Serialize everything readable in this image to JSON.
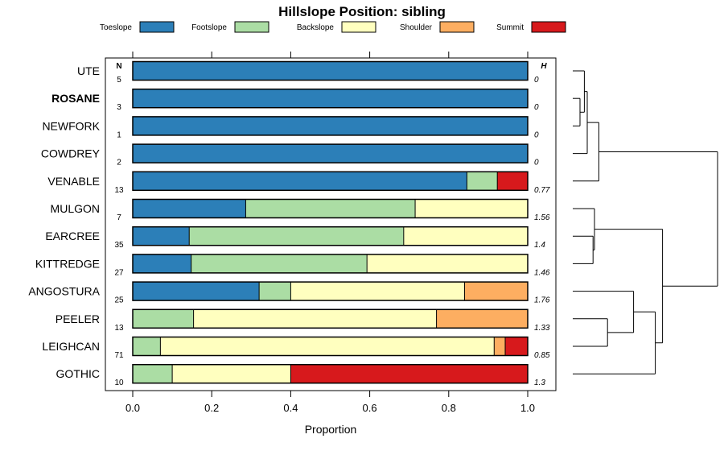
{
  "chart_data": {
    "type": "bar",
    "orientation": "horizontal-stacked",
    "title": "Hillslope Position: sibling",
    "xlabel": "Proportion",
    "xlim": [
      0,
      1
    ],
    "x_ticks": [
      "0.0",
      "0.2",
      "0.4",
      "0.6",
      "0.8",
      "1.0"
    ],
    "n_header": "N",
    "h_header": "H",
    "legend_position": "top",
    "segments": [
      {
        "name": "Toeslope",
        "color": "#2c7fb8"
      },
      {
        "name": "Footslope",
        "color": "#abdda4"
      },
      {
        "name": "Backslope",
        "color": "#ffffbf"
      },
      {
        "name": "Shoulder",
        "color": "#fdae61"
      },
      {
        "name": "Summit",
        "color": "#d7191c"
      }
    ],
    "rows": [
      {
        "label": "UTE",
        "bold": false,
        "n": "5",
        "h": "0",
        "values": [
          1,
          0,
          0,
          0,
          0
        ]
      },
      {
        "label": "ROSANE",
        "bold": true,
        "n": "3",
        "h": "0",
        "values": [
          1,
          0,
          0,
          0,
          0
        ]
      },
      {
        "label": "NEWFORK",
        "bold": false,
        "n": "1",
        "h": "0",
        "values": [
          1,
          0,
          0,
          0,
          0
        ]
      },
      {
        "label": "COWDREY",
        "bold": false,
        "n": "2",
        "h": "0",
        "values": [
          1,
          0,
          0,
          0,
          0
        ]
      },
      {
        "label": "VENABLE",
        "bold": false,
        "n": "13",
        "h": "0.77",
        "values": [
          0.846,
          0.077,
          0,
          0,
          0.077
        ]
      },
      {
        "label": "MULGON",
        "bold": false,
        "n": "7",
        "h": "1.56",
        "values": [
          0.286,
          0.429,
          0.285,
          0,
          0
        ]
      },
      {
        "label": "EARCREE",
        "bold": false,
        "n": "35",
        "h": "1.4",
        "values": [
          0.143,
          0.543,
          0.314,
          0,
          0
        ]
      },
      {
        "label": "KITTREDGE",
        "bold": false,
        "n": "27",
        "h": "1.46",
        "values": [
          0.148,
          0.445,
          0.407,
          0,
          0
        ]
      },
      {
        "label": "ANGOSTURA",
        "bold": false,
        "n": "25",
        "h": "1.76",
        "values": [
          0.32,
          0.08,
          0.44,
          0.16,
          0
        ]
      },
      {
        "label": "PEELER",
        "bold": false,
        "n": "13",
        "h": "1.33",
        "values": [
          0,
          0.154,
          0.615,
          0.231,
          0
        ]
      },
      {
        "label": "LEIGHCAN",
        "bold": false,
        "n": "71",
        "h": "0.85",
        "values": [
          0,
          0.07,
          0.845,
          0.028,
          0.057
        ]
      },
      {
        "label": "GOTHIC",
        "bold": false,
        "n": "10",
        "h": "1.3",
        "values": [
          0,
          0.1,
          0.3,
          0,
          0.6
        ]
      }
    ],
    "dendrogram": {
      "leaf_order": [
        "UTE",
        "ROSANE",
        "NEWFORK",
        "COWDREY",
        "VENABLE",
        "MULGON",
        "EARCREE",
        "KITTREDGE",
        "ANGOSTURA",
        "PEELER",
        "LEIGHCAN",
        "GOTHIC"
      ],
      "merges": [
        {
          "left": "L1",
          "right": "L2",
          "height": 0.05
        },
        {
          "left": "L0",
          "right": "N0",
          "height": 0.08
        },
        {
          "left": "N1",
          "right": "L3",
          "height": 0.1
        },
        {
          "left": "N2",
          "right": "L4",
          "height": 0.18
        },
        {
          "left": "L6",
          "right": "L7",
          "height": 0.14
        },
        {
          "left": "L5",
          "right": "N4",
          "height": 0.15
        },
        {
          "left": "L9",
          "right": "L10",
          "height": 0.24
        },
        {
          "left": "L8",
          "right": "N6",
          "height": 0.42
        },
        {
          "left": "N7",
          "right": "L11",
          "height": 0.57
        },
        {
          "left": "N5",
          "right": "N8",
          "height": 0.62
        },
        {
          "left": "N3",
          "right": "N9",
          "height": 1.0
        }
      ]
    }
  }
}
